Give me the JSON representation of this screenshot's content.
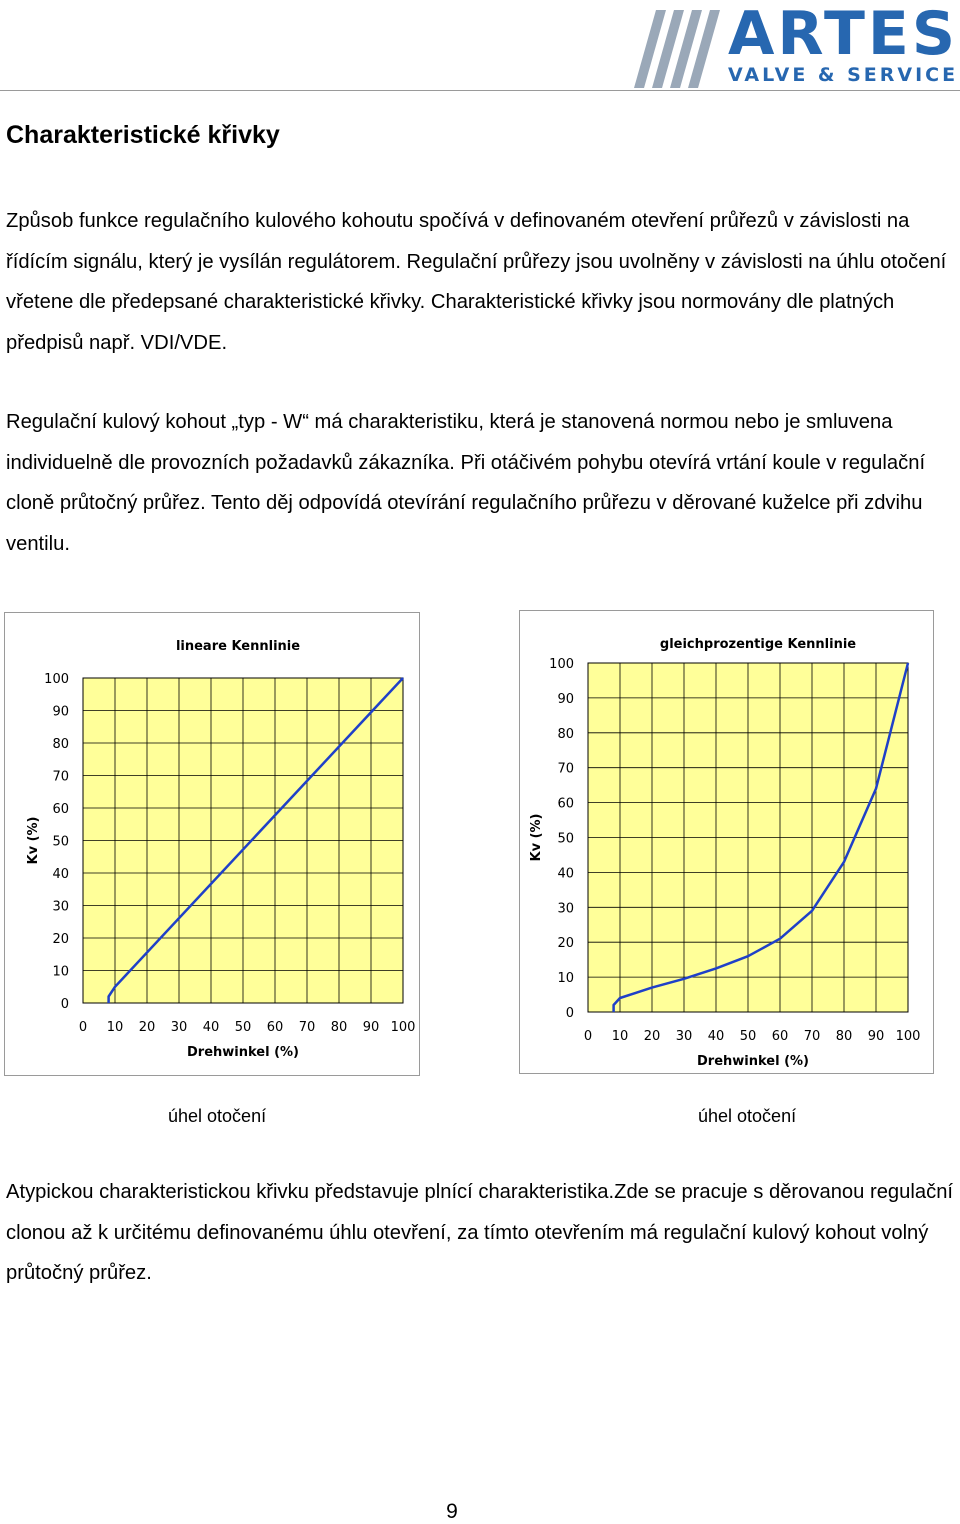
{
  "logo": {
    "name": "ARTES",
    "tagline": "VALVE & SERVICE",
    "color": "#2767b0"
  },
  "heading": "Charakteristické křivky",
  "paragraphs": [
    "Způsob funkce regulačního kulového kohoutu  spočívá v definovaném otevření průřezů v závislosti na řídícím signálu, který je vysílán regulátorem. Regulační průřezy jsou uvolněny v závislosti na úhlu otočení vřetene dle předepsané charakteristické křivky. Charakteristické křivky  jsou normovány dle platných předpisů např. VDI/VDE.",
    "Regulační kulový kohout „typ - W“ má charakteristiku, která je stanovená normou nebo je smluvena individuelně dle provozních požadavků zákazníka. Při otáčivém pohybu otevírá vrtání koule v regulační cloně průtočný průřez. Tento děj odpovídá otevírání regulačního průřezu v děrované  kuželce při zdvihu ventilu.",
    "Atypickou charakteristickou křivku představuje plnící charakteristika.Zde se pracuje s děrovanou regulační clonou až k určitému definovanému úhlu otevření, za tímto otevřením má regulační kulový kohout volný průtočný průřez."
  ],
  "chart_data": [
    {
      "type": "line",
      "title": "lineare Kennlinie",
      "xlabel": "Drehwinkel (%)",
      "ylabel": "Kv (%)",
      "xlim": [
        0,
        100
      ],
      "ylim": [
        0,
        100
      ],
      "xticks": [
        "0",
        "10",
        "20",
        "30",
        "40",
        "50",
        "60",
        "70",
        "80",
        "90",
        "100"
      ],
      "yticks": [
        "0",
        "10",
        "20",
        "30",
        "40",
        "50",
        "60",
        "70",
        "80",
        "90",
        "100"
      ],
      "grid": true,
      "plot_bg": "#ffff99",
      "line_color": "#1f40c8",
      "series": [
        {
          "x": [
            8,
            8,
            10,
            100
          ],
          "y": [
            0,
            2,
            5,
            100
          ]
        }
      ]
    },
    {
      "type": "line",
      "title": "gleichprozentige Kennlinie",
      "xlabel": "Drehwinkel (%)",
      "ylabel": "Kv (%)",
      "xlim": [
        0,
        100
      ],
      "ylim": [
        0,
        100
      ],
      "xticks": [
        "0",
        "10",
        "20",
        "30",
        "40",
        "50",
        "60",
        "70",
        "80",
        "90",
        "100"
      ],
      "yticks": [
        "0",
        "10",
        "20",
        "30",
        "40",
        "50",
        "60",
        "70",
        "80",
        "90",
        "100"
      ],
      "grid": true,
      "plot_bg": "#ffff99",
      "line_color": "#1f40c8",
      "series": [
        {
          "x": [
            8,
            8,
            10,
            15,
            20,
            30,
            40,
            50,
            60,
            70,
            80,
            90,
            100
          ],
          "y": [
            0,
            2,
            4,
            5.5,
            7,
            9.5,
            12.5,
            16,
            21,
            29,
            43,
            64,
            100
          ]
        }
      ]
    }
  ],
  "captions": [
    "úhel otočení",
    "úhel otočení"
  ],
  "page_number": "9"
}
